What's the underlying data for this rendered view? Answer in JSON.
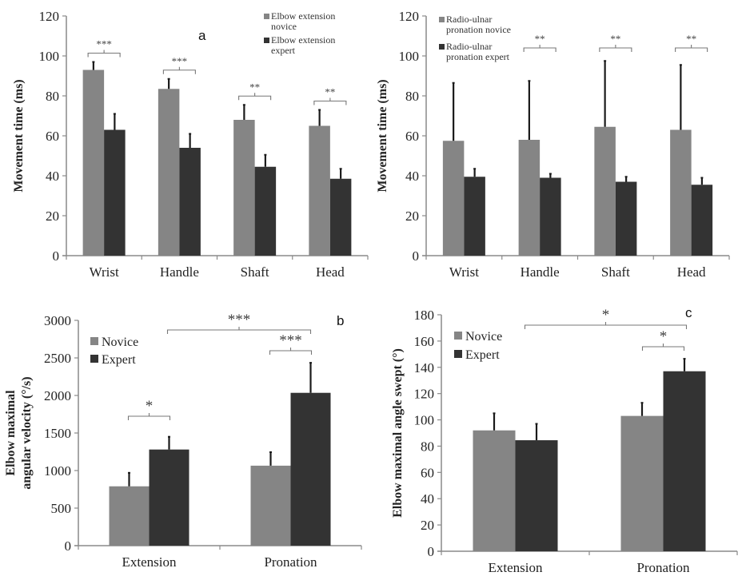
{
  "colors": {
    "novice": "#858585",
    "expert": "#333333",
    "axis": "#8a8a8a",
    "bracket": "#777777",
    "error": "#1a1a1a"
  },
  "chart_data": [
    {
      "id": "a-left",
      "type": "bar",
      "panel_label": "a",
      "title": "",
      "xlabel": "",
      "ylabel": "Movement time (ms)",
      "ylim": [
        0,
        120
      ],
      "yticks": [
        0,
        20,
        40,
        60,
        80,
        100,
        120
      ],
      "categories": [
        "Wrist",
        "Handle",
        "Shaft",
        "Head"
      ],
      "series": [
        {
          "name": "Elbow extension novice",
          "legend_lines": [
            "Elbow extension",
            "novice"
          ],
          "values": [
            93,
            83.5,
            68,
            65
          ],
          "errors": [
            4,
            5,
            7.5,
            8
          ]
        },
        {
          "name": "Elbow extension expert",
          "legend_lines": [
            "Elbow extension",
            "expert"
          ],
          "values": [
            63,
            54,
            44.5,
            38.5
          ],
          "errors": [
            8,
            7,
            6,
            5
          ]
        }
      ],
      "legend": "top-right",
      "significance": [
        {
          "category": "Wrist",
          "label": "***"
        },
        {
          "category": "Handle",
          "label": "***"
        },
        {
          "category": "Shaft",
          "label": "**"
        },
        {
          "category": "Head",
          "label": "**"
        }
      ]
    },
    {
      "id": "a-right",
      "type": "bar",
      "panel_label": "",
      "title": "",
      "xlabel": "",
      "ylabel": "Movement time (ms)",
      "ylim": [
        0,
        120
      ],
      "yticks": [
        0,
        20,
        40,
        60,
        80,
        100,
        120
      ],
      "categories": [
        "Wrist",
        "Handle",
        "Shaft",
        "Head"
      ],
      "series": [
        {
          "name": "Radio-ulnar pronation novice",
          "legend_lines": [
            "Radio-ulnar",
            "pronation novice"
          ],
          "values": [
            57.5,
            58,
            64.5,
            63
          ],
          "errors": [
            29,
            29.5,
            33,
            32.5
          ]
        },
        {
          "name": "Radio-ulnar pronation expert",
          "legend_lines": [
            "Radio-ulnar",
            "pronation expert"
          ],
          "values": [
            39.5,
            39,
            37,
            35.5
          ],
          "errors": [
            4,
            2,
            2.5,
            3.5
          ]
        }
      ],
      "legend": "top-left",
      "significance": [
        {
          "category": "Handle",
          "label": "**"
        },
        {
          "category": "Shaft",
          "label": "**"
        },
        {
          "category": "Head",
          "label": "**"
        }
      ]
    },
    {
      "id": "b",
      "type": "bar",
      "panel_label": "b",
      "title": "",
      "xlabel": "",
      "ylabel_lines": [
        "Elbow maximal",
        "angular velocity (°/s)"
      ],
      "ylim": [
        0,
        3000
      ],
      "yticks": [
        0,
        500,
        1000,
        1500,
        2000,
        2500,
        3000
      ],
      "categories": [
        "Extension",
        "Pronation"
      ],
      "series": [
        {
          "name": "Novice",
          "values": [
            790,
            1065
          ],
          "errors": [
            180,
            180
          ]
        },
        {
          "name": "Expert",
          "values": [
            1280,
            2035
          ],
          "errors": [
            170,
            400
          ]
        }
      ],
      "legend": "top-left",
      "significance": [
        {
          "type": "within",
          "category": "Extension",
          "label": "*"
        },
        {
          "type": "within",
          "category": "Pronation",
          "label": "***"
        },
        {
          "type": "between",
          "from": "Extension",
          "to": "Pronation",
          "label": "***"
        }
      ]
    },
    {
      "id": "c",
      "type": "bar",
      "panel_label": "c",
      "title": "",
      "xlabel": "",
      "ylabel": "Elbow maximal angle swept (°)",
      "ylim": [
        0,
        180
      ],
      "yticks": [
        0,
        20,
        40,
        60,
        80,
        100,
        120,
        140,
        160,
        180
      ],
      "categories": [
        "Extension",
        "Pronation"
      ],
      "series": [
        {
          "name": "Novice",
          "values": [
            92,
            103
          ],
          "errors": [
            13,
            10
          ]
        },
        {
          "name": "Expert",
          "values": [
            84.5,
            137
          ],
          "errors": [
            12.5,
            9.5
          ]
        }
      ],
      "legend": "top-left",
      "significance": [
        {
          "type": "within",
          "category": "Pronation",
          "label": "*"
        },
        {
          "type": "between",
          "from": "Extension",
          "to": "Pronation",
          "label": "*"
        }
      ]
    }
  ]
}
